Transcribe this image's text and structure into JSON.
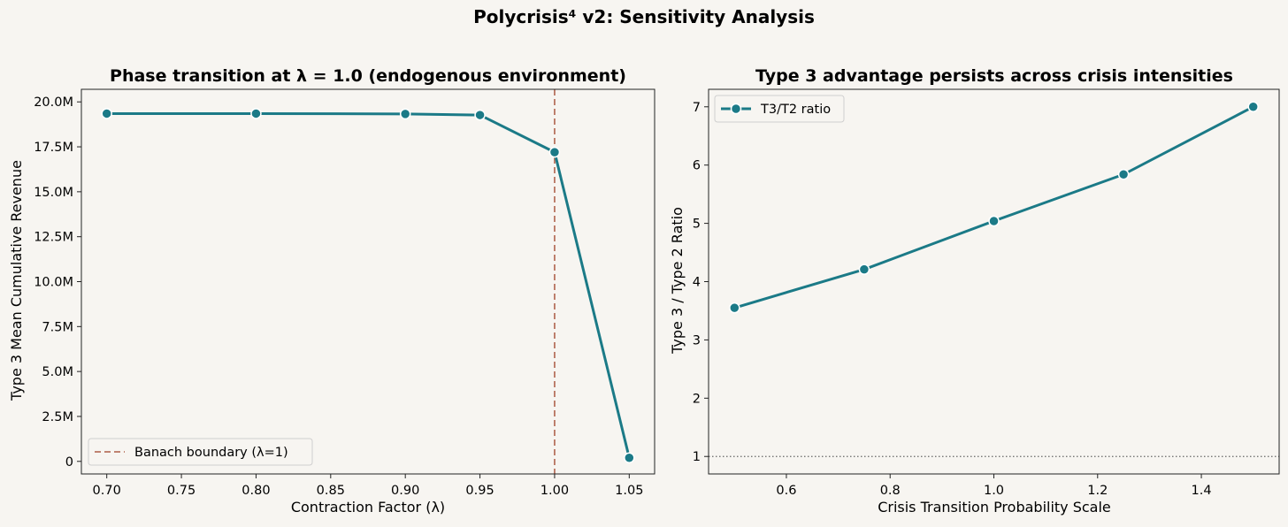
{
  "figure": {
    "suptitle": "Polycrisis⁴ v2: Sensitivity Analysis",
    "background": "#f7f5f1"
  },
  "chart_data": [
    {
      "type": "line",
      "title": "Phase transition at λ = 1.0 (endogenous environment)",
      "xlabel": "Contraction Factor (λ)",
      "ylabel": "Type 3 Mean Cumulative Revenue",
      "xlim": [
        0.683,
        1.067
      ],
      "ylim": [
        -700000,
        20700000
      ],
      "xticks": [
        0.7,
        0.75,
        0.8,
        0.85,
        0.9,
        0.95,
        1.0,
        1.05
      ],
      "xtick_labels": [
        "0.70",
        "0.75",
        "0.80",
        "0.85",
        "0.90",
        "0.95",
        "1.00",
        "1.05"
      ],
      "yticks": [
        0,
        2500000,
        5000000,
        7500000,
        10000000,
        12500000,
        15000000,
        17500000,
        20000000
      ],
      "ytick_labels": [
        "0",
        "2.5M",
        "5.0M",
        "7.5M",
        "10.0M",
        "12.5M",
        "15.0M",
        "17.5M",
        "20.0M"
      ],
      "series": [
        {
          "x": [
            0.7,
            0.8,
            0.9,
            0.95,
            1.0,
            1.05
          ],
          "y": [
            19350000,
            19350000,
            19330000,
            19270000,
            17200000,
            200000
          ],
          "color": "#1b7a87"
        }
      ],
      "reference_lines": [
        {
          "orientation": "vertical",
          "x": 1.0,
          "style": "dashed",
          "color": "#b8735f",
          "label": "Banach boundary (λ=1)"
        }
      ],
      "legend": {
        "position": "lower-left",
        "entries": [
          "Banach boundary (λ=1)"
        ]
      },
      "grid": false
    },
    {
      "type": "line",
      "title": "Type 3 advantage persists across crisis intensities",
      "xlabel": "Crisis Transition Probability Scale",
      "ylabel": "Type 3 / Type 2 Ratio",
      "xlim": [
        0.45,
        1.55
      ],
      "ylim": [
        0.7,
        7.3
      ],
      "xticks": [
        0.6,
        0.8,
        1.0,
        1.2,
        1.4
      ],
      "xtick_labels": [
        "0.6",
        "0.8",
        "1.0",
        "1.2",
        "1.4"
      ],
      "yticks": [
        1,
        2,
        3,
        4,
        5,
        6,
        7
      ],
      "ytick_labels": [
        "1",
        "2",
        "3",
        "4",
        "5",
        "6",
        "7"
      ],
      "series": [
        {
          "name": "T3/T2 ratio",
          "x": [
            0.5,
            0.75,
            1.0,
            1.25,
            1.5
          ],
          "y": [
            3.55,
            4.21,
            5.04,
            5.84,
            7.0
          ],
          "color": "#1b7a87"
        }
      ],
      "reference_lines": [
        {
          "orientation": "horizontal",
          "y": 1,
          "style": "dotted",
          "color": "#666666"
        }
      ],
      "legend": {
        "position": "upper-left",
        "entries": [
          "T3/T2 ratio"
        ]
      },
      "grid": false
    }
  ]
}
